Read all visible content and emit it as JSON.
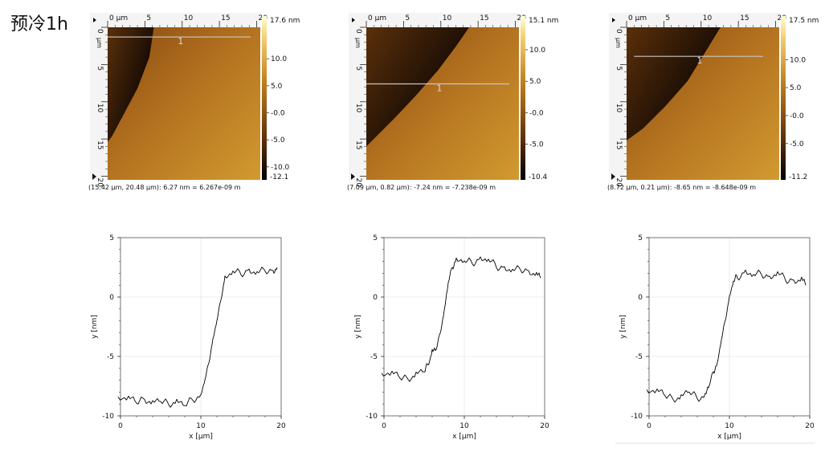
{
  "title": "预冷1h",
  "colors": {
    "afm_dark": "#150a04",
    "afm_mid": "#8a4a10",
    "afm_light": "#d29a30",
    "afm_bright": "#ffffdc",
    "profile_line": "#000000",
    "scan_line": "#c8c8c8"
  },
  "chart_data": [
    {
      "type": "heatmap",
      "x_unit_label": "μm",
      "y_unit_label": "μm",
      "x_ticks": [
        0,
        5,
        10,
        15,
        20
      ],
      "y_ticks": [
        0,
        5,
        10,
        15,
        20
      ],
      "colorbar_max_label": "17.6 nm",
      "colorbar_ticks": [
        "10.0",
        "5.0",
        "-0.0",
        "-5.0",
        "-10.0"
      ],
      "colorbar_min_label": "-12.1",
      "colorbar_range": [
        -12.1,
        17.6
      ],
      "scan_line": {
        "y": 1.3,
        "x_range": [
          0,
          20.48
        ],
        "label": "1"
      },
      "step_edge": [
        [
          6.2,
          0
        ],
        [
          5.6,
          4
        ],
        [
          4.0,
          8.2
        ],
        [
          2.2,
          11.6
        ],
        [
          0.6,
          14.6
        ],
        [
          0,
          15.4
        ]
      ],
      "readout": "(15.42 μm, 20.48 μm): 6.27 nm = 6.267e-09 m"
    },
    {
      "type": "heatmap",
      "x_unit_label": "μm",
      "y_unit_label": "μm",
      "x_ticks": [
        0,
        5,
        10,
        15,
        20
      ],
      "y_ticks": [
        0,
        5,
        10,
        15,
        20
      ],
      "colorbar_max_label": "15.1 nm",
      "colorbar_ticks": [
        "10.0",
        "5.0",
        "-0.0",
        "-5.0"
      ],
      "colorbar_min_label": "-10.4",
      "colorbar_range": [
        -10.4,
        15.1
      ],
      "scan_line": {
        "y": 7.6,
        "x_range": [
          0,
          20.48
        ],
        "label": "1"
      },
      "step_edge": [
        [
          13.8,
          0
        ],
        [
          12.0,
          2.6
        ],
        [
          9.6,
          5.8
        ],
        [
          6.8,
          9.0
        ],
        [
          3.8,
          12.2
        ],
        [
          1.0,
          15.0
        ],
        [
          0,
          16.0
        ]
      ],
      "readout": "(7.09 μm, 0.82 μm): -7.24 nm = -7.238e-09 m"
    },
    {
      "type": "heatmap",
      "x_unit_label": "μm",
      "y_unit_label": "μm",
      "x_ticks": [
        0,
        5,
        10,
        15,
        20
      ],
      "y_ticks": [
        0,
        5,
        10,
        15,
        20
      ],
      "colorbar_max_label": "17.5 nm",
      "colorbar_ticks": [
        "10.0",
        "5.0",
        "-0.0",
        "-5.0"
      ],
      "colorbar_min_label": "-11.2",
      "colorbar_range": [
        -11.2,
        17.5
      ],
      "scan_line": {
        "y": 3.9,
        "x_range": [
          1.0,
          19.6
        ],
        "label": "1"
      },
      "step_edge": [
        [
          12.6,
          0
        ],
        [
          10.4,
          3.6
        ],
        [
          8.2,
          7.2
        ],
        [
          5.2,
          10.6
        ],
        [
          2.2,
          13.6
        ],
        [
          0,
          15.2
        ]
      ],
      "readout": "(8.72 μm, 0.21 μm): -8.65 nm = -8.648e-09 m"
    },
    {
      "type": "line",
      "xlabel": "x [μm]",
      "ylabel": "y [nm]",
      "xlim": [
        0,
        20
      ],
      "ylim": [
        -10,
        5
      ],
      "x_ticks": [
        0,
        10,
        20
      ],
      "y_ticks": [
        -10,
        -5,
        0,
        5
      ],
      "grid": true,
      "series": [
        {
          "x": [
            -0.3,
            1,
            2,
            3,
            4,
            5,
            6,
            7,
            8,
            9,
            10,
            10.5,
            11,
            11.5,
            12,
            12.5,
            13,
            14,
            15,
            16,
            17,
            18,
            19,
            19.5
          ],
          "y": [
            -8.4,
            -8.5,
            -8.8,
            -8.6,
            -8.9,
            -8.7,
            -9.0,
            -8.8,
            -9.1,
            -8.6,
            -8.3,
            -7.0,
            -5.5,
            -3.6,
            -2.0,
            -0.2,
            1.6,
            2.1,
            2.0,
            2.2,
            2.0,
            2.3,
            2.1,
            2.5
          ]
        }
      ]
    },
    {
      "type": "line",
      "xlabel": "x [μm]",
      "ylabel": "y [nm]",
      "xlim": [
        0,
        20
      ],
      "ylim": [
        -10,
        5
      ],
      "x_ticks": [
        0,
        10,
        20
      ],
      "y_ticks": [
        -10,
        -5,
        0,
        5
      ],
      "grid": true,
      "series": [
        {
          "x": [
            -0.3,
            1,
            2,
            3,
            4,
            5,
            5.5,
            6,
            6.5,
            7,
            7.5,
            8,
            8.5,
            9,
            10,
            11,
            12,
            13,
            14,
            15,
            16,
            17,
            18,
            19,
            19.5
          ],
          "y": [
            -6.4,
            -6.4,
            -6.7,
            -6.9,
            -6.5,
            -6.2,
            -5.7,
            -4.6,
            -4.4,
            -3.0,
            -1.2,
            1.2,
            2.6,
            3.1,
            3.0,
            2.9,
            3.2,
            3.1,
            2.6,
            2.4,
            2.2,
            2.4,
            2.1,
            1.9,
            1.6
          ]
        }
      ]
    },
    {
      "type": "line",
      "xlabel": "x [μm]",
      "ylabel": "y [nm]",
      "xlim": [
        0,
        20
      ],
      "ylim": [
        -10,
        5
      ],
      "x_ticks": [
        0,
        10,
        20
      ],
      "y_ticks": [
        -10,
        -5,
        0,
        5
      ],
      "grid": true,
      "series": [
        {
          "x": [
            -0.3,
            1,
            2,
            3,
            4,
            5,
            6,
            7,
            7.5,
            8,
            8.5,
            9,
            9.5,
            10,
            10.5,
            11,
            12,
            13,
            14,
            15,
            16,
            17,
            18,
            19,
            19.5
          ],
          "y": [
            -7.8,
            -7.9,
            -8.2,
            -8.6,
            -8.4,
            -7.9,
            -8.5,
            -8.3,
            -7.4,
            -6.2,
            -5.6,
            -3.6,
            -1.9,
            0.0,
            1.3,
            1.7,
            2.1,
            1.8,
            2.0,
            1.6,
            2.0,
            1.5,
            1.3,
            1.5,
            1.0
          ]
        }
      ]
    }
  ]
}
